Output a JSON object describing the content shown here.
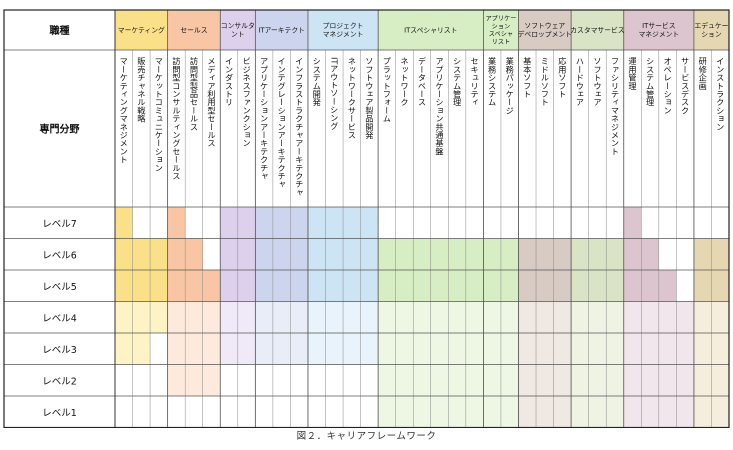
{
  "header": {
    "role_label": "職種",
    "specialty_label": "専門分野"
  },
  "roles": [
    {
      "id": "marketing",
      "lines": [
        "マーケティング"
      ],
      "color": "#fbe08a",
      "light": "#fdf3c4",
      "specialties": [
        "マーケティングマネジメント",
        "販売チャネル戦略",
        "マーケットコミュニケーション"
      ],
      "levels": [
        [
          3,
          7
        ],
        [
          3,
          6
        ],
        [
          4,
          6
        ]
      ]
    },
    {
      "id": "sales",
      "lines": [
        "セールス"
      ],
      "color": "#f8c6a4",
      "light": "#fdeadc",
      "specialties": [
        "訪問型コンサルティングセールス",
        "訪問型製品セールス",
        "メディア利用型セールス"
      ],
      "levels": [
        [
          2,
          7
        ],
        [
          2,
          6
        ],
        [
          2,
          5
        ]
      ]
    },
    {
      "id": "consultant",
      "lines": [
        "コンサルタ",
        "ント"
      ],
      "color": "#ddd0ec",
      "light": "#f0e9f7",
      "specialties": [
        "インダストリ",
        "ビジネスファンクション"
      ],
      "levels": [
        [
          3,
          7
        ],
        [
          3,
          7
        ]
      ]
    },
    {
      "id": "it_architect",
      "lines": [
        "ITアーキテクト"
      ],
      "color": "#cdd5ee",
      "light": "#e9edf8",
      "specialties": [
        "アプリケーションアーキテクチャ",
        "インテグレーションアーキテクチャ",
        "インフラストラクチャアーキテクチャ"
      ],
      "levels": [
        [
          3,
          7
        ],
        [
          3,
          7
        ],
        [
          3,
          7
        ]
      ]
    },
    {
      "id": "project_management",
      "lines": [
        "プロジェクト",
        "マネジメント"
      ],
      "color": "#cde4f5",
      "light": "#e8f3fb",
      "specialties": [
        "システム開発",
        "ITアウトソーシング",
        "ネットワークサービス",
        "ソフトウェア製品開発"
      ],
      "levels": [
        [
          3,
          7
        ],
        [
          3,
          7
        ],
        [
          3,
          7
        ],
        [
          3,
          7
        ]
      ]
    },
    {
      "id": "it_specialist",
      "lines": [
        "ITスペシャリスト"
      ],
      "color": "#d7edc4",
      "light": "#eef7e4",
      "specialties": [
        "プラットフォーム",
        "ネットワーク",
        "データベース",
        "アプリケーション共通基盤",
        "システム管理",
        "セキュリティ"
      ],
      "levels": [
        [
          1,
          6
        ],
        [
          1,
          6
        ],
        [
          1,
          6
        ],
        [
          1,
          6
        ],
        [
          1,
          6
        ],
        [
          1,
          6
        ]
      ]
    },
    {
      "id": "application_specialist",
      "lines": [
        "アプリケー",
        "ション",
        "スペシャ",
        "リスト"
      ],
      "color": "#d7edc4",
      "light": "#eef7e4",
      "specialties": [
        "業務システム",
        "業務パッケージ"
      ],
      "levels": [
        [
          1,
          6
        ],
        [
          1,
          6
        ]
      ]
    },
    {
      "id": "software_development",
      "lines": [
        "ソフトウェア",
        "デベロップメント"
      ],
      "color": "#d8cbc3",
      "light": "#efe8e3",
      "specialties": [
        "基本ソフト",
        "ミドルソフト",
        "応用ソフト"
      ],
      "levels": [
        [
          1,
          6
        ],
        [
          1,
          6
        ],
        [
          1,
          6
        ]
      ]
    },
    {
      "id": "customer_service",
      "lines": [
        "カスタマサービス"
      ],
      "color": "#d9e3c6",
      "light": "#eef3e3",
      "specialties": [
        "ハードウェア",
        "ソフトウェア",
        "ファシリティマネジメント"
      ],
      "levels": [
        [
          1,
          6
        ],
        [
          1,
          6
        ],
        [
          1,
          6
        ]
      ]
    },
    {
      "id": "it_service_management",
      "lines": [
        "ITサービス",
        "マネジメント"
      ],
      "color": "#ddc5cf",
      "light": "#f1e6eb",
      "specialties": [
        "運用管理",
        "システム管理",
        "オペレーション",
        "サービスデスク"
      ],
      "levels": [
        [
          1,
          7
        ],
        [
          1,
          6
        ],
        [
          1,
          5
        ],
        [
          1,
          4
        ]
      ]
    },
    {
      "id": "education",
      "lines": [
        "エデュケー",
        "ション"
      ],
      "color": "#e6d7b3",
      "light": "#f5eedd",
      "specialties": [
        "研修企画",
        "インストラクション"
      ],
      "levels": [
        [
          1,
          6
        ],
        [
          1,
          6
        ]
      ]
    }
  ],
  "levels": [
    "レベル7",
    "レベル6",
    "レベル5",
    "レベル4",
    "レベル3",
    "レベル2",
    "レベル1"
  ],
  "caption": "図２．キャリアフレームワーク"
}
